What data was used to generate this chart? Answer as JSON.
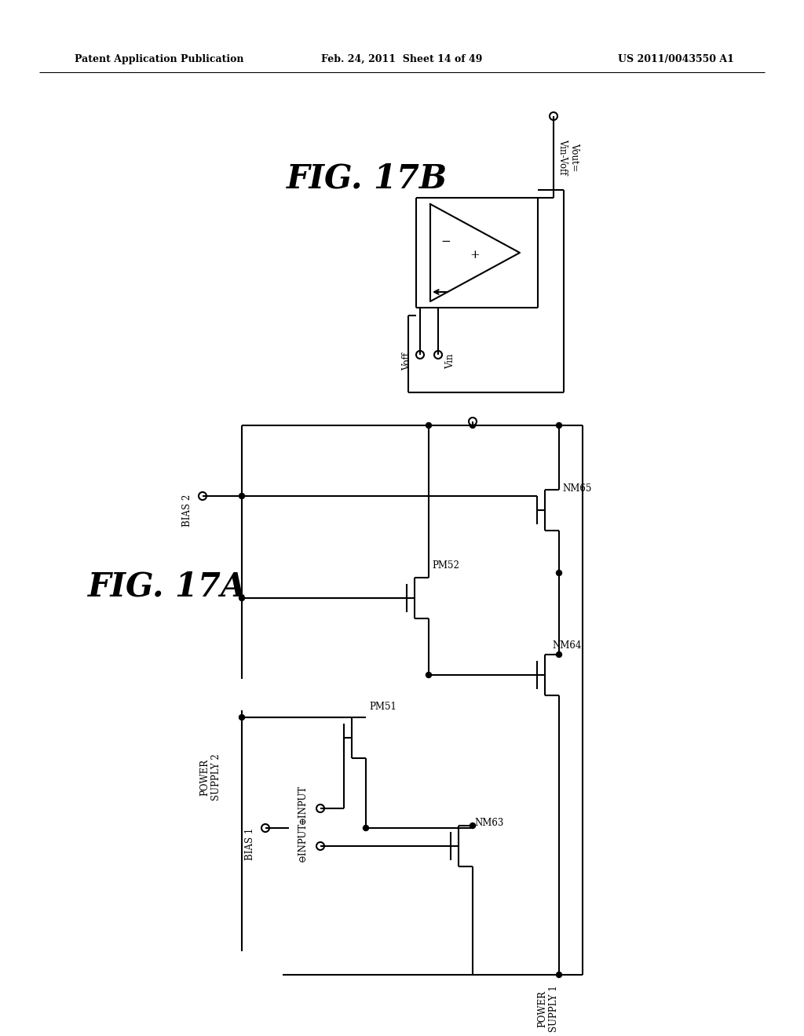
{
  "bg_color": "#ffffff",
  "header_left": "Patent Application Publication",
  "header_mid": "Feb. 24, 2011  Sheet 14 of 49",
  "header_right": "US 2011/0043550 A1",
  "fig17a_label": "FIG. 17A",
  "fig17b_label": "FIG. 17B"
}
